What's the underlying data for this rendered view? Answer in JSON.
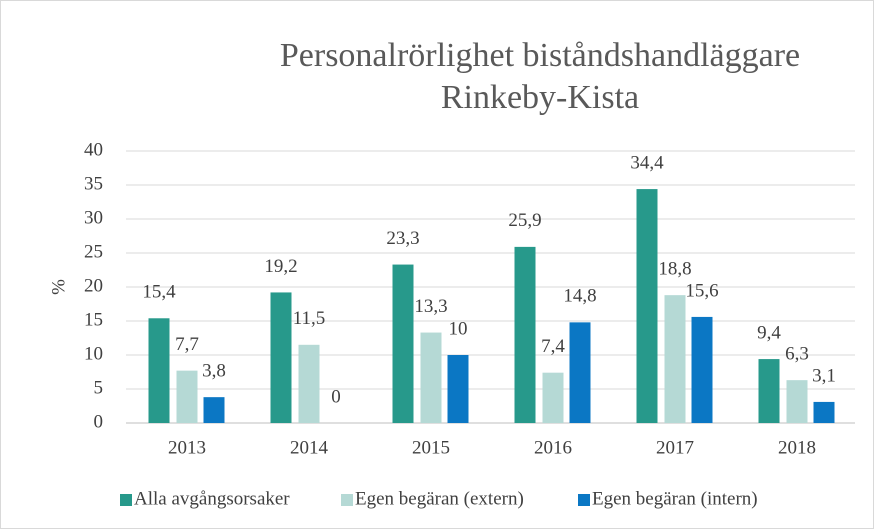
{
  "chart_data": {
    "type": "bar",
    "title": [
      "Personalrörlighet biståndshandläggare",
      "Rinkeby-Kista"
    ],
    "y_label": "%",
    "categories": [
      "2013",
      "2014",
      "2015",
      "2016",
      "2017",
      "2018"
    ],
    "series": [
      {
        "name": "Alla avgångsorsaker",
        "color": "#27998b",
        "values": [
          15.4,
          19.2,
          23.3,
          25.9,
          34.4,
          9.4
        ],
        "value_labels": [
          "15,4",
          "19,2",
          "23,3",
          "25,9",
          "34,4",
          "9,4"
        ]
      },
      {
        "name": "Egen begäran (extern)",
        "color": "#b5d9d5",
        "values": [
          7.7,
          11.5,
          13.3,
          7.4,
          18.8,
          6.3
        ],
        "value_labels": [
          "7,7",
          "11,5",
          "13,3",
          "7,4",
          "18,8",
          "6,3"
        ]
      },
      {
        "name": "Egen begäran (intern)",
        "color": "#0b77c4",
        "values": [
          3.8,
          0,
          10,
          14.8,
          15.6,
          3.1
        ],
        "value_labels": [
          "3,8",
          "0",
          "10",
          "14,8",
          "15,6",
          "3,1"
        ]
      }
    ],
    "ylim": [
      0,
      40
    ],
    "yticks": [
      0,
      5,
      10,
      15,
      20,
      25,
      30,
      35,
      40
    ],
    "grid": true,
    "legend": "bottom"
  }
}
